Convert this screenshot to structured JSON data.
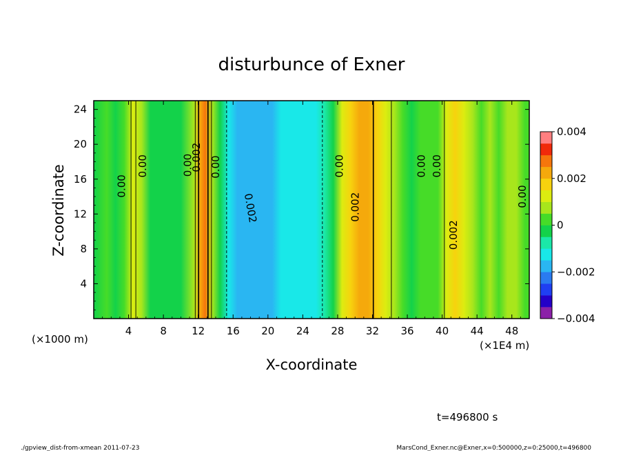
{
  "chart_data": {
    "type": "heatmap",
    "title": "disturbunce of Exner",
    "xlabel": "X-coordinate",
    "ylabel": "Z-coordinate",
    "x_unit_note": "(×1000 m)",
    "x_scale_note": "(×1E4 m)",
    "time_label": "t=496800 s",
    "xlim": [
      0,
      50
    ],
    "ylim": [
      0,
      25
    ],
    "xticks": [
      "4",
      "8",
      "12",
      "16",
      "20",
      "24",
      "28",
      "32",
      "36",
      "40",
      "44",
      "48"
    ],
    "yticks": [
      "4",
      "8",
      "12",
      "16",
      "20",
      "24"
    ],
    "colorbar": {
      "range": [
        -0.004,
        0.004
      ],
      "tick_labels": [
        "0.004",
        "0.002",
        "0",
        "−0.002",
        "−0.004"
      ],
      "colors": [
        "#8b21a8",
        "#2400c8",
        "#1f3ff2",
        "#2a7bf0",
        "#2ab6f2",
        "#19e8e8",
        "#1be8a8",
        "#13d24a",
        "#46dc28",
        "#a8e61c",
        "#dcec10",
        "#f7d20e",
        "#f5a90c",
        "#f5760c",
        "#f02a0a",
        "#ff7f80"
      ]
    },
    "contour_labels": [
      "0.00",
      "0.00",
      "0.00",
      "0.002",
      "0.00",
      "0.002",
      "0.00",
      "0.002",
      "0.00",
      "0.00",
      "0.002",
      "0.00"
    ],
    "column_values_x": [
      0,
      1.5,
      2.5,
      3.5,
      4.5,
      5.5,
      6.5,
      8,
      10,
      11.5,
      12.2,
      12.8,
      13.6,
      14.5,
      15.5,
      16.5,
      17.5,
      18.5,
      19.5,
      20.5,
      21.5,
      22.5,
      23.5,
      24.5,
      25.5,
      26.5,
      27.5,
      28.5,
      29.5,
      30.5,
      31.5,
      32.5,
      33.5,
      34.5,
      35.5,
      36.5,
      37.5,
      38.5,
      39.5,
      40.5,
      41.5,
      42.5,
      43.5,
      44.5,
      45.5,
      46.5,
      47.5,
      48.5,
      49.5,
      50
    ],
    "column_values": [
      -0.0003,
      0.0002,
      -0.0003,
      0.0003,
      0.0012,
      0.0006,
      -0.0002,
      -0.0003,
      -0.0002,
      0.0006,
      0.0024,
      0.0028,
      0.0008,
      -0.0004,
      -0.0012,
      -0.0016,
      -0.002,
      -0.0018,
      -0.002,
      -0.0016,
      -0.0013,
      -0.0012,
      -0.0012,
      -0.0014,
      -0.0013,
      -0.0009,
      -0.0002,
      0.001,
      0.0016,
      0.002,
      0.0023,
      0.0018,
      0.0014,
      0.0008,
      0.0002,
      -0.0002,
      0.0002,
      0.0001,
      0.0004,
      0.0012,
      0.0016,
      0.001,
      0.0005,
      0.0004,
      0.0008,
      0.0002,
      0.0005,
      0.0009,
      0.0002,
      0.0
    ],
    "colorbar_mark_values": [
      0.004,
      0.002,
      0,
      -0.002,
      -0.004
    ]
  },
  "footer": {
    "left": "./gpview_dist-from-xmean 2011-07-23",
    "right": "MarsCond_Exner.nc@Exner,x=0:500000,z=0:25000,t=496800"
  }
}
